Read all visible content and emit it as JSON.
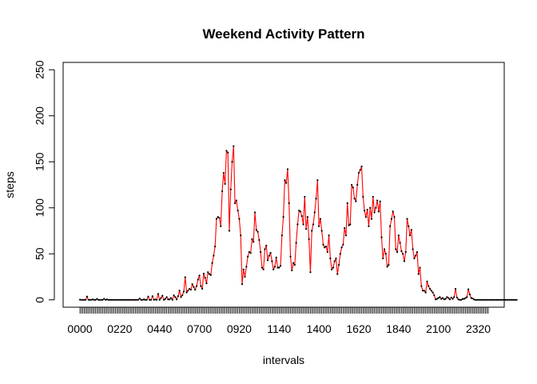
{
  "chart_data": {
    "type": "line",
    "title": "Weekend Activity Pattern",
    "xlabel": "intervals",
    "ylabel": "steps",
    "ylim": [
      -8,
      258
    ],
    "yticks": [
      0,
      50,
      100,
      150,
      200,
      250
    ],
    "xtick_labels": [
      "0000",
      "0220",
      "0440",
      "0700",
      "0920",
      "1140",
      "1400",
      "1620",
      "1840",
      "2100",
      "2320"
    ],
    "interval_count": 288,
    "label_every": 28,
    "series": [
      {
        "color": "#ff0000",
        "point_color": "#000000",
        "values": [
          0.2,
          0.0,
          0.0,
          0.0,
          0.0,
          3.5,
          0.0,
          0.0,
          0.0,
          0.5,
          0.0,
          0.0,
          1.0,
          0.0,
          0.0,
          0.0,
          0.0,
          1.2,
          0.0,
          0.5,
          0.0,
          0.0,
          0.0,
          0.0,
          0.0,
          0.0,
          0.0,
          0.0,
          0.0,
          0.0,
          0.0,
          0.0,
          0.0,
          0.0,
          0.0,
          0.0,
          0.0,
          0.0,
          0.0,
          0.0,
          0.0,
          0.0,
          1.5,
          0.0,
          0.0,
          0.5,
          0.0,
          0.0,
          3.5,
          0.0,
          0.0,
          4.0,
          0.0,
          0.5,
          0.0,
          6.5,
          0.0,
          2.0,
          4.5,
          0.0,
          1.0,
          3.0,
          0.5,
          0.5,
          2.0,
          0.0,
          5.0,
          3.0,
          0.5,
          4.0,
          10.0,
          3.0,
          5.0,
          9.0,
          24.5,
          8.0,
          10.0,
          12.0,
          11.0,
          17.0,
          14.0,
          11.0,
          15.0,
          22.0,
          26.5,
          15.0,
          12.0,
          28.5,
          24.0,
          18.0,
          30.0,
          28.0,
          27.0,
          40.0,
          48.0,
          58.0,
          88.0,
          90.0,
          89.0,
          80.0,
          118.0,
          138.0,
          126.0,
          162.0,
          160.0,
          75.0,
          120.0,
          150.0,
          167.0,
          105.0,
          108.0,
          97.0,
          88.0,
          70.0,
          17.0,
          33.0,
          25.0,
          36.0,
          47.0,
          52.0,
          51.0,
          66.0,
          63.0,
          95.0,
          76.0,
          74.0,
          65.0,
          52.0,
          35.0,
          33.0,
          55.0,
          59.0,
          43.0,
          48.0,
          51.0,
          42.0,
          33.0,
          36.0,
          46.0,
          35.0,
          35.0,
          37.0,
          70.0,
          90.0,
          130.0,
          127.0,
          142.0,
          105.0,
          47.0,
          32.0,
          40.0,
          38.0,
          62.0,
          82.0,
          97.0,
          96.0,
          91.0,
          82.0,
          112.0,
          77.0,
          90.0,
          66.0,
          30.0,
          75.0,
          82.0,
          95.0,
          110.0,
          130.0,
          80.0,
          88.0,
          75.0,
          60.0,
          57.0,
          58.0,
          52.0,
          70.0,
          45.0,
          33.0,
          35.0,
          42.0,
          45.0,
          28.0,
          38.0,
          50.0,
          57.0,
          60.0,
          78.0,
          70.0,
          105.0,
          81.0,
          82.0,
          125.0,
          122.0,
          110.0,
          107.0,
          125.0,
          138.0,
          141.0,
          145.0,
          112.0,
          97.0,
          90.0,
          98.0,
          80.0,
          100.0,
          88.0,
          112.0,
          95.0,
          100.0,
          108.0,
          96.0,
          107.0,
          68.0,
          45.0,
          55.0,
          50.0,
          36.0,
          38.0,
          80.0,
          88.0,
          96.0,
          90.0,
          55.0,
          52.0,
          70.0,
          62.0,
          53.0,
          50.0,
          42.0,
          52.0,
          88.0,
          80.0,
          70.0,
          76.0,
          55.0,
          45.0,
          48.0,
          52.0,
          28.0,
          35.0,
          15.0,
          10.0,
          10.0,
          8.0,
          20.0,
          15.0,
          12.0,
          10.0,
          8.0,
          5.0,
          0.5,
          1.0,
          2.0,
          3.0,
          1.0,
          2.0,
          0.5,
          1.0,
          3.0,
          2.0,
          0.5,
          2.5,
          1.0,
          3.0,
          12.0,
          2.5,
          0.5,
          0.0,
          0.0,
          1.0,
          1.0,
          2.0,
          3.0,
          11.5,
          6.0,
          2.0,
          1.5,
          0.5,
          0.0,
          0.0,
          0.0,
          0.0,
          0.0,
          0.0,
          0.0,
          0.0,
          0.0,
          0.0,
          0.0,
          0.0,
          0.0,
          0.0,
          0.0,
          0.0,
          0.0,
          0.0,
          0.0,
          0.0,
          0.0,
          0.0,
          0.0,
          0.0,
          0.0,
          0.0,
          0.0,
          0.0,
          0.0,
          0.0
        ]
      }
    ]
  }
}
